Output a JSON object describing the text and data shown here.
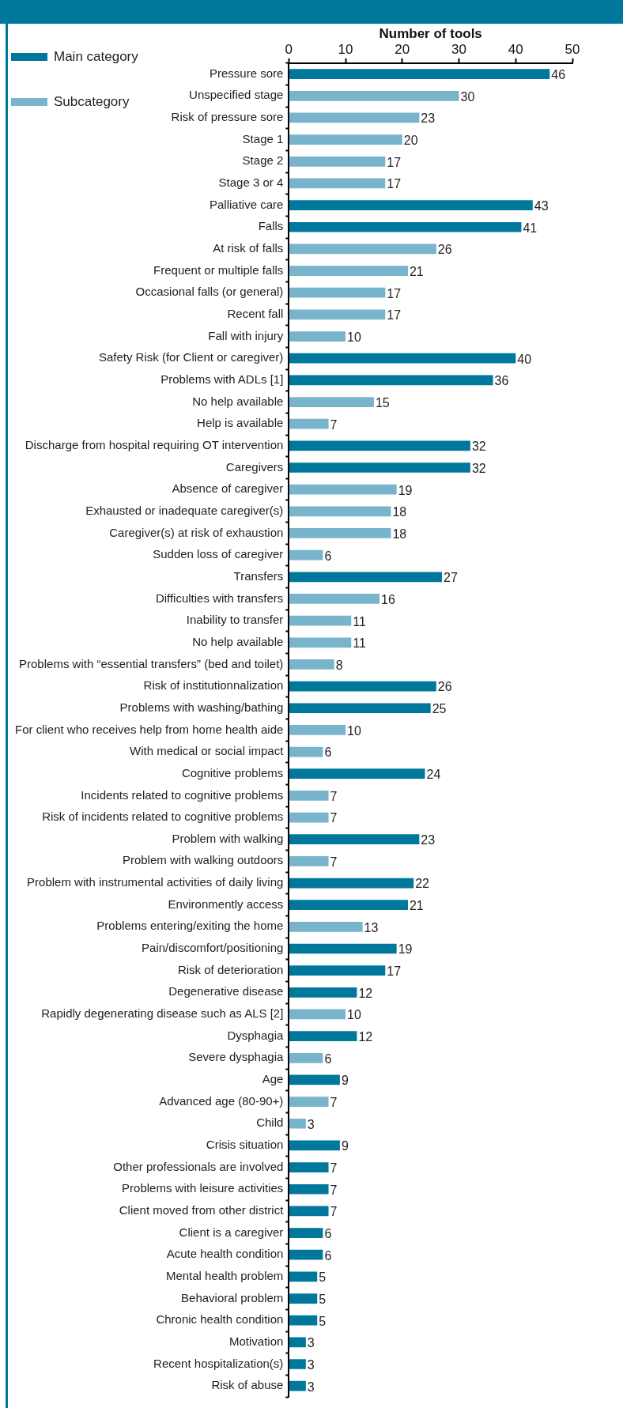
{
  "chart_data": {
    "type": "bar",
    "orientation": "horizontal",
    "xlabel": "Number of tools",
    "xlim": [
      0,
      50
    ],
    "xticks": [
      0,
      10,
      20,
      30,
      40,
      50
    ],
    "legend": "top left",
    "data_labels": true,
    "grid": false,
    "categories": [
      "Pressure sore",
      "Unspecified stage",
      "Risk of pressure sore",
      "Stage 1",
      "Stage 2",
      "Stage 3 or 4",
      "Palliative care",
      "Falls",
      "At risk of falls",
      "Frequent or multiple falls",
      "Occasional falls (or general)",
      "Recent fall",
      "Fall with injury",
      "Safety Risk (for Client or caregiver)",
      "Problems with ADLs [1]",
      "No help available",
      "Help is available",
      "Discharge from hospital requiring OT intervention",
      "Caregivers",
      "Absence of caregiver",
      "Exhausted or inadequate caregiver(s)",
      "Caregiver(s) at risk of exhaustion",
      "Sudden loss of caregiver",
      "Transfers",
      "Difficulties with transfers",
      "Inability to transfer",
      "No help available",
      "Problems with “essential transfers” (bed and toilet)",
      "Risk of institutionnalization",
      "Problems with washing/bathing",
      "For client who receives help from home health aide",
      "With medical or social impact",
      "Cognitive problems",
      "Incidents related to cognitive problems",
      "Risk of incidents related to cognitive problems",
      "Problem with walking",
      "Problem with walking outdoors",
      "Problem with instrumental activities of daily living",
      "Environmently access",
      "Problems entering/exiting the home",
      "Pain/discomfort/positioning",
      "Risk of deterioration",
      "Degenerative disease",
      "Rapidly degenerating disease such as ALS [2]",
      "Dysphagia",
      "Severe dysphagia",
      "Age",
      "Advanced age (80-90+)",
      "Child",
      "Crisis situation",
      "Other professionals are involved",
      "Problems with leisure activities",
      "Client moved from other district",
      "Client is a caregiver",
      "Acute health condition",
      "Mental health problem",
      "Behavioral problem",
      "Chronic health condition",
      "Motivation",
      "Recent hospitalization(s)",
      "Risk of abuse"
    ],
    "series": [
      {
        "name": "Main category",
        "color": "#00789c",
        "values": [
          46,
          null,
          null,
          null,
          null,
          null,
          43,
          41,
          null,
          null,
          null,
          null,
          null,
          40,
          36,
          null,
          null,
          32,
          32,
          null,
          null,
          null,
          null,
          27,
          null,
          null,
          null,
          null,
          26,
          25,
          null,
          null,
          24,
          null,
          null,
          23,
          null,
          22,
          21,
          null,
          19,
          17,
          12,
          null,
          12,
          null,
          9,
          null,
          null,
          9,
          7,
          7,
          7,
          6,
          6,
          5,
          5,
          5,
          3,
          3,
          3
        ]
      },
      {
        "name": "Subcategory",
        "color": "#78b4cb",
        "values": [
          null,
          30,
          23,
          20,
          17,
          17,
          null,
          null,
          26,
          21,
          17,
          17,
          10,
          null,
          null,
          15,
          7,
          null,
          null,
          19,
          18,
          18,
          6,
          null,
          16,
          11,
          11,
          8,
          null,
          null,
          10,
          6,
          null,
          7,
          7,
          null,
          7,
          null,
          null,
          13,
          null,
          null,
          null,
          10,
          null,
          6,
          null,
          7,
          3,
          null,
          null,
          null,
          null,
          null,
          null,
          null,
          null,
          null,
          null,
          null,
          null
        ]
      }
    ]
  }
}
